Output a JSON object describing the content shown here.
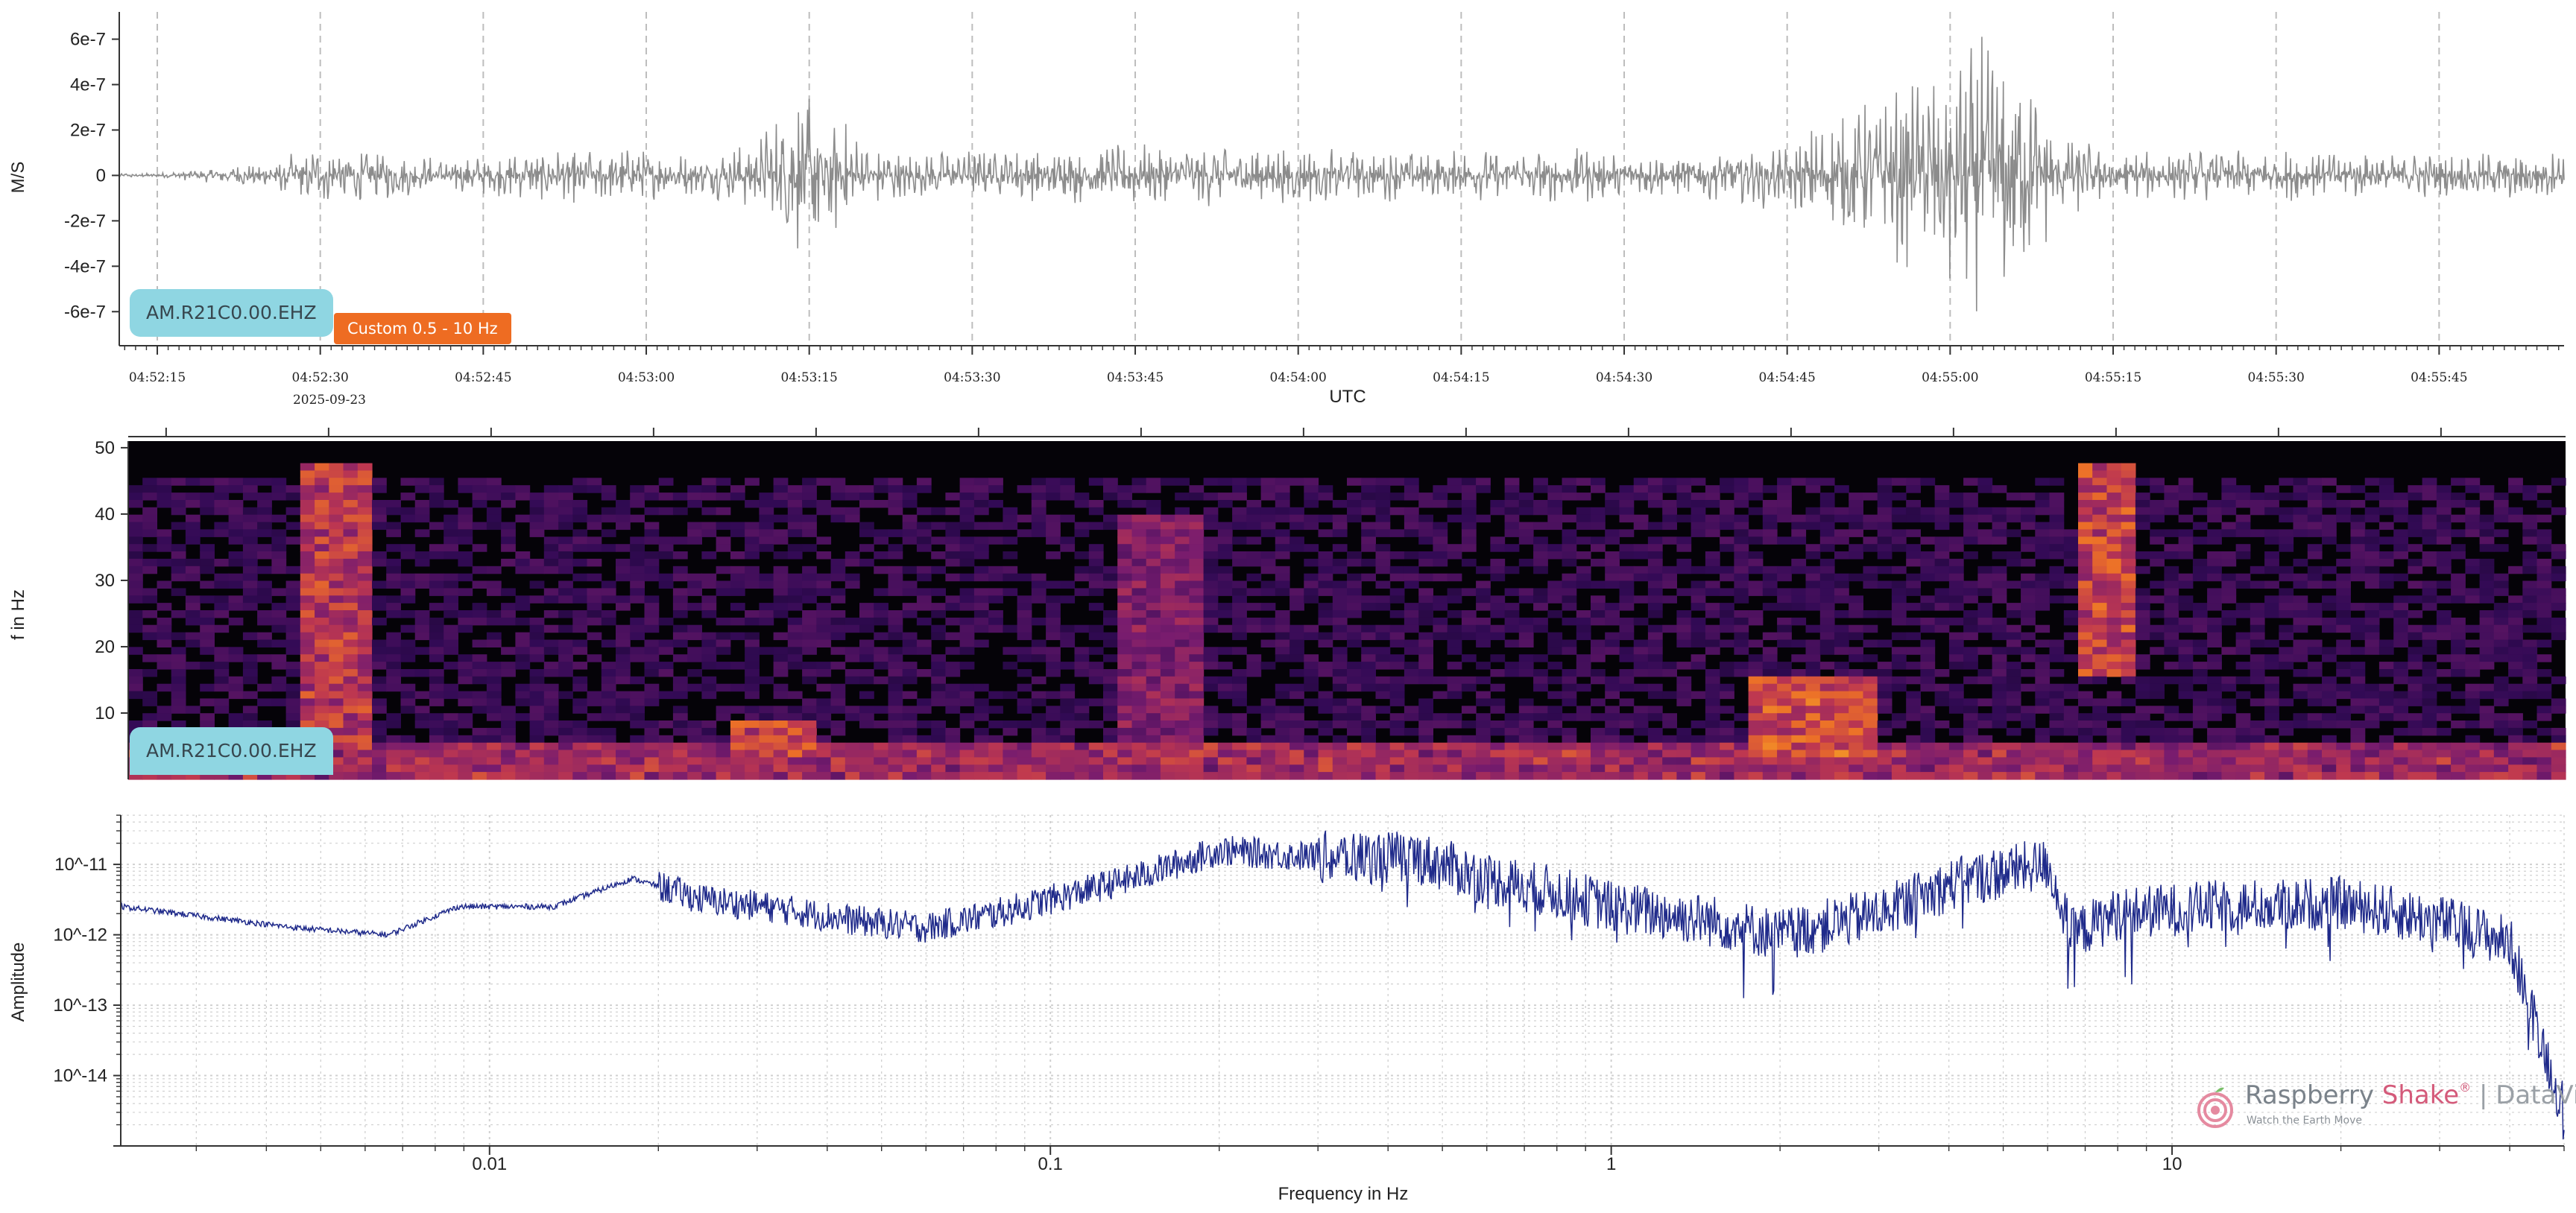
{
  "panels": {
    "seismogram": {
      "ylabel": "M/S",
      "xlabel": "UTC",
      "date_label": "2025-09-23",
      "station_label": "AM.R21C0.00.EHZ",
      "filter_label": "Custom 0.5 - 10 Hz"
    },
    "spectrogram": {
      "ylabel": "f in Hz",
      "station_label": "AM.R21C0.00.EHZ"
    },
    "spectrum": {
      "ylabel": "Amplitude",
      "xlabel": "Frequency in Hz"
    }
  },
  "logo": {
    "brand_main": "Raspberry ",
    "brand_accent": "Shake",
    "brand_reg": "®",
    "brand_sep": " | ",
    "brand_product": "DataView",
    "tagline": "Watch the Earth Move"
  },
  "colors": {
    "waveform": "#8c8c8c",
    "spectrum_line": "#1f2a8a",
    "station_label_bg": "#8fd6e2",
    "filter_badge_bg": "#ee6c22",
    "grid": "#bdbdbd"
  },
  "chart_data": [
    {
      "type": "line",
      "name_ref": "seismogram",
      "xlabel": "UTC",
      "ylabel": "M/S",
      "x_ticks": [
        "04:52:15",
        "04:52:30",
        "04:52:45",
        "04:53:00",
        "04:53:15",
        "04:53:30",
        "04:53:45",
        "04:54:00",
        "04:54:15",
        "04:54:30",
        "04:54:45",
        "04:55:00",
        "04:55:15",
        "04:55:30",
        "04:55:45"
      ],
      "xlim_seconds": [
        -3.5,
        221.5
      ],
      "y_ticks": [
        "6e-7",
        "4e-7",
        "2e-7",
        "0",
        "-2e-7",
        "-4e-7",
        "-6e-7"
      ],
      "y_tick_values": [
        6e-07,
        4e-07,
        2e-07,
        0,
        -2e-07,
        -4e-07,
        -6e-07
      ],
      "ylim": [
        -7.5e-07,
        7.2e-07
      ],
      "grid": "vertical dashed",
      "envelope": {
        "time_s": [
          0,
          10,
          15,
          20,
          26,
          30,
          40,
          50,
          55,
          60,
          65,
          70,
          80,
          90,
          100,
          110,
          120,
          130,
          140,
          150,
          160,
          170,
          175,
          180,
          185,
          190,
          200,
          210,
          220
        ],
        "amplitude": [
          1e-08,
          6e-08,
          1.4e-07,
          1.2e-07,
          8e-08,
          9e-08,
          1.3e-07,
          9e-08,
          1.6e-07,
          4.5e-07,
          1.4e-07,
          1.1e-07,
          1.2e-07,
          1.4e-07,
          1.4e-07,
          1.2e-07,
          1.1e-07,
          1.3e-07,
          1e-07,
          1.6e-07,
          4e-07,
          6.8e-07,
          2e-07,
          1.2e-07,
          1.1e-07,
          1.2e-07,
          1.1e-07,
          1e-07,
          1.1e-07
        ]
      }
    },
    {
      "type": "heatmap",
      "name_ref": "spectrogram",
      "ylabel": "f in Hz",
      "y_ticks": [
        "10",
        "20",
        "30",
        "40",
        "50"
      ],
      "y_tick_values": [
        10,
        20,
        30,
        40,
        50
      ],
      "ylim": [
        0,
        51
      ],
      "colormap": "inferno",
      "hot_regions": [
        {
          "t": [
            13,
            19
          ],
          "f": [
            5,
            48
          ],
          "level": 0.75
        },
        {
          "t": [
            52,
            60
          ],
          "f": [
            3,
            9
          ],
          "level": 0.8
        },
        {
          "t": [
            88,
            96
          ],
          "f": [
            3,
            40
          ],
          "level": 0.55
        },
        {
          "t": [
            146,
            158
          ],
          "f": [
            3,
            15
          ],
          "level": 0.85
        },
        {
          "t": [
            176,
            182
          ],
          "f": [
            15,
            48
          ],
          "level": 0.8
        }
      ]
    },
    {
      "type": "line",
      "name_ref": "spectrum",
      "xlabel": "Frequency in Hz",
      "ylabel": "Amplitude",
      "x_scale": "log",
      "y_scale": "log",
      "x_ticks": [
        "0.01",
        "0.1",
        "1",
        "10"
      ],
      "x_tick_values": [
        0.01,
        0.1,
        1,
        10
      ],
      "xlim": [
        0.0022,
        50
      ],
      "y_ticks": [
        "10^-11",
        "10^-12",
        "10^-13",
        "10^-14"
      ],
      "y_tick_values": [
        1e-11,
        1e-12,
        1e-13,
        1e-14
      ],
      "ylim_log10": [
        -15.0,
        -10.3
      ],
      "grid": "dotted, log minor",
      "control_points": {
        "freq_hz": [
          0.0022,
          0.0045,
          0.0066,
          0.0088,
          0.013,
          0.018,
          0.024,
          0.031,
          0.045,
          0.06,
          0.08,
          0.1,
          0.14,
          0.2,
          0.3,
          0.45,
          0.6,
          0.8,
          1.0,
          1.5,
          2.0,
          3.0,
          4.0,
          5.0,
          6.0,
          6.6,
          8.0,
          12,
          20,
          30,
          40,
          50
        ],
        "amplitude_log10": [
          -11.6,
          -11.9,
          -12.0,
          -11.6,
          -11.6,
          -11.2,
          -11.5,
          -11.6,
          -11.8,
          -11.9,
          -11.7,
          -11.5,
          -11.2,
          -10.8,
          -10.9,
          -10.9,
          -11.2,
          -11.4,
          -11.6,
          -11.8,
          -12.0,
          -11.7,
          -11.3,
          -11.1,
          -11.0,
          -12.0,
          -11.7,
          -11.6,
          -11.55,
          -11.8,
          -12.1,
          -14.5
        ]
      }
    }
  ]
}
